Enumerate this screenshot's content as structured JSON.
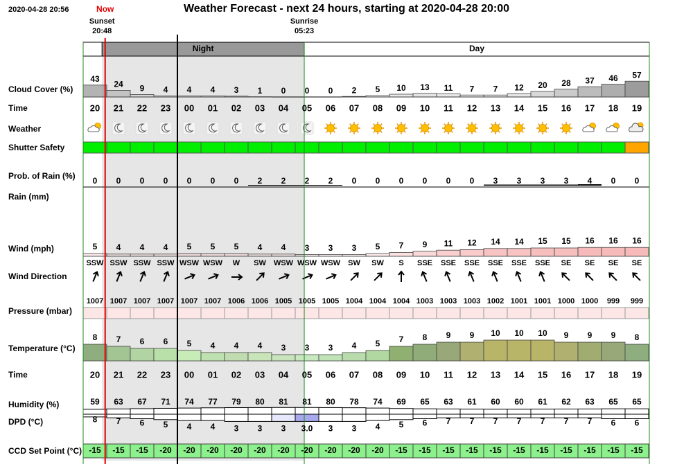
{
  "header": {
    "timestamp": "2020-04-28 20:56",
    "now_label": "Now",
    "title": "Weather Forecast - next 24 hours, starting at 2020-04-28 20:00",
    "sunset": {
      "label": "Sunset",
      "time": "20:48"
    },
    "sunrise": {
      "label": "Sunrise",
      "time": "05:23"
    },
    "night_label": "Night",
    "day_label": "Day"
  },
  "hours": [
    "20",
    "21",
    "22",
    "23",
    "00",
    "01",
    "02",
    "03",
    "04",
    "05",
    "06",
    "07",
    "08",
    "09",
    "10",
    "11",
    "12",
    "13",
    "14",
    "15",
    "16",
    "17",
    "18",
    "19"
  ],
  "rows": {
    "cloud_cover": {
      "label": "Cloud Cover (%)",
      "color": "#8c8c8c",
      "values": [
        43,
        24,
        9,
        4,
        4,
        4,
        3,
        1,
        0,
        0,
        0,
        2,
        5,
        10,
        13,
        11,
        7,
        7,
        12,
        20,
        28,
        37,
        46,
        57
      ]
    },
    "time_top": {
      "label": "Time"
    },
    "weather": {
      "label": "Weather",
      "icons": [
        "partly-cloudy-day",
        "clear-night",
        "clear-night",
        "clear-night",
        "clear-night",
        "clear-night",
        "clear-night",
        "clear-night",
        "clear-night",
        "clear-night",
        "clear-day",
        "clear-day",
        "clear-day",
        "clear-day",
        "clear-day",
        "clear-day",
        "clear-day",
        "clear-day",
        "clear-day",
        "clear-day",
        "clear-day",
        "partly-cloudy-day",
        "partly-cloudy-day",
        "cloudy"
      ]
    },
    "shutter_safety": {
      "label": "Shutter Safety",
      "colors": [
        "#00ee00",
        "#00ee00",
        "#00ee00",
        "#00ee00",
        "#00ee00",
        "#00ee00",
        "#00ee00",
        "#00ee00",
        "#00ee00",
        "#00ee00",
        "#00ee00",
        "#00ee00",
        "#00ee00",
        "#00ee00",
        "#00ee00",
        "#00ee00",
        "#00ee00",
        "#00ee00",
        "#00ee00",
        "#00ee00",
        "#00ee00",
        "#00ee00",
        "#00ee00",
        "#ffa500"
      ]
    },
    "prob_rain": {
      "label": "Prob. of Rain (%)",
      "color": "#000000",
      "values": [
        0,
        0,
        0,
        0,
        0,
        0,
        0,
        2,
        2,
        2,
        2,
        0,
        0,
        0,
        0,
        0,
        0,
        3,
        3,
        3,
        3,
        4,
        0,
        0
      ]
    },
    "rain": {
      "label": "Rain (mm)"
    },
    "wind": {
      "label": "Wind (mph)",
      "color": "#f4a0a0",
      "values": [
        5,
        4,
        4,
        4,
        5,
        5,
        5,
        4,
        4,
        3,
        3,
        3,
        5,
        7,
        9,
        11,
        12,
        14,
        14,
        15,
        15,
        16,
        16,
        16
      ]
    },
    "wind_direction": {
      "label": "Wind Direction",
      "values": [
        "SSW",
        "SSW",
        "SSW",
        "SSW",
        "WSW",
        "WSW",
        "W",
        "SW",
        "WSW",
        "WSW",
        "WSW",
        "SW",
        "SW",
        "S",
        "SSE",
        "SSE",
        "SSE",
        "SSE",
        "SSE",
        "SSE",
        "SE",
        "SE",
        "SE",
        "SE"
      ]
    },
    "pressure": {
      "label": "Pressure (mbar)",
      "color": "#fde6e6",
      "values": [
        1007,
        1007,
        1007,
        1007,
        1007,
        1007,
        1006,
        1006,
        1005,
        1005,
        1005,
        1004,
        1004,
        1004,
        1003,
        1003,
        1003,
        1002,
        1001,
        1001,
        1000,
        1000,
        999,
        999
      ]
    },
    "temperature": {
      "label": "Temperature (°C)",
      "values": [
        8,
        7,
        6,
        6,
        5,
        4,
        4,
        4,
        3,
        3,
        3,
        4,
        5,
        7,
        8,
        9,
        9,
        10,
        10,
        10,
        9,
        9,
        9,
        8
      ],
      "colors": [
        "#8fae7f",
        "#a3c493",
        "#b2d4a2",
        "#b8e0a8",
        "#c8ecb8",
        "#bfe0b0",
        "#c0dcb0",
        "#c8e4b8",
        "#c8e4bc",
        "#c8e8c0",
        "#c0e4b8",
        "#b8dcac",
        "#b0d8a0",
        "#8fb070",
        "#90ac78",
        "#98a878",
        "#b0b070",
        "#b8b468",
        "#b8b468",
        "#b8b468",
        "#b0b070",
        "#a0ac70",
        "#98a878",
        "#8fae7f"
      ]
    },
    "time_bottom": {
      "label": "Time"
    },
    "humidity": {
      "label": "Humidity (%)",
      "values": [
        59,
        63,
        67,
        71,
        74,
        77,
        79,
        80,
        81,
        81,
        80,
        78,
        74,
        69,
        65,
        63,
        61,
        60,
        60,
        61,
        62,
        63,
        65,
        65
      ]
    },
    "dpd": {
      "label": "DPD (°C)",
      "values": [
        8,
        7,
        6,
        5,
        4,
        4,
        3,
        3,
        3,
        3,
        3,
        3,
        4,
        5,
        6,
        7,
        7,
        7,
        7,
        7,
        7,
        7,
        6,
        6
      ],
      "value_labels": [
        "8",
        "7",
        "6",
        "5",
        "4",
        "4",
        "3",
        "3",
        "3",
        "3.0",
        "3",
        "3",
        "4",
        "5",
        "6",
        "7",
        "7",
        "7",
        "7",
        "7",
        "7",
        "7",
        "6",
        "6"
      ],
      "colors": [
        "#ffffff",
        "#ffffff",
        "#ffffff",
        "#ffffff",
        "#ffffff",
        "#ffffff",
        "#ffffff",
        "#ffffff",
        "#e8e8fc",
        "#a8a8ee",
        "#ffffff",
        "#ffffff",
        "#ffffff",
        "#ffffff",
        "#ffffff",
        "#ffffff",
        "#ffffff",
        "#ffffff",
        "#ffffff",
        "#ffffff",
        "#ffffff",
        "#ffffff",
        "#ffffff",
        "#ffffff"
      ]
    },
    "ccd_set_point": {
      "label": "CCD Set Point (°C)",
      "color": "#8cf08c",
      "values": [
        -15,
        -15,
        -15,
        -20,
        -20,
        -20,
        -20,
        -20,
        -20,
        -20,
        -20,
        -20,
        -20,
        -15,
        -15,
        -15,
        -15,
        -15,
        -15,
        -15,
        -15,
        -15,
        -15,
        -15
      ]
    }
  }
}
